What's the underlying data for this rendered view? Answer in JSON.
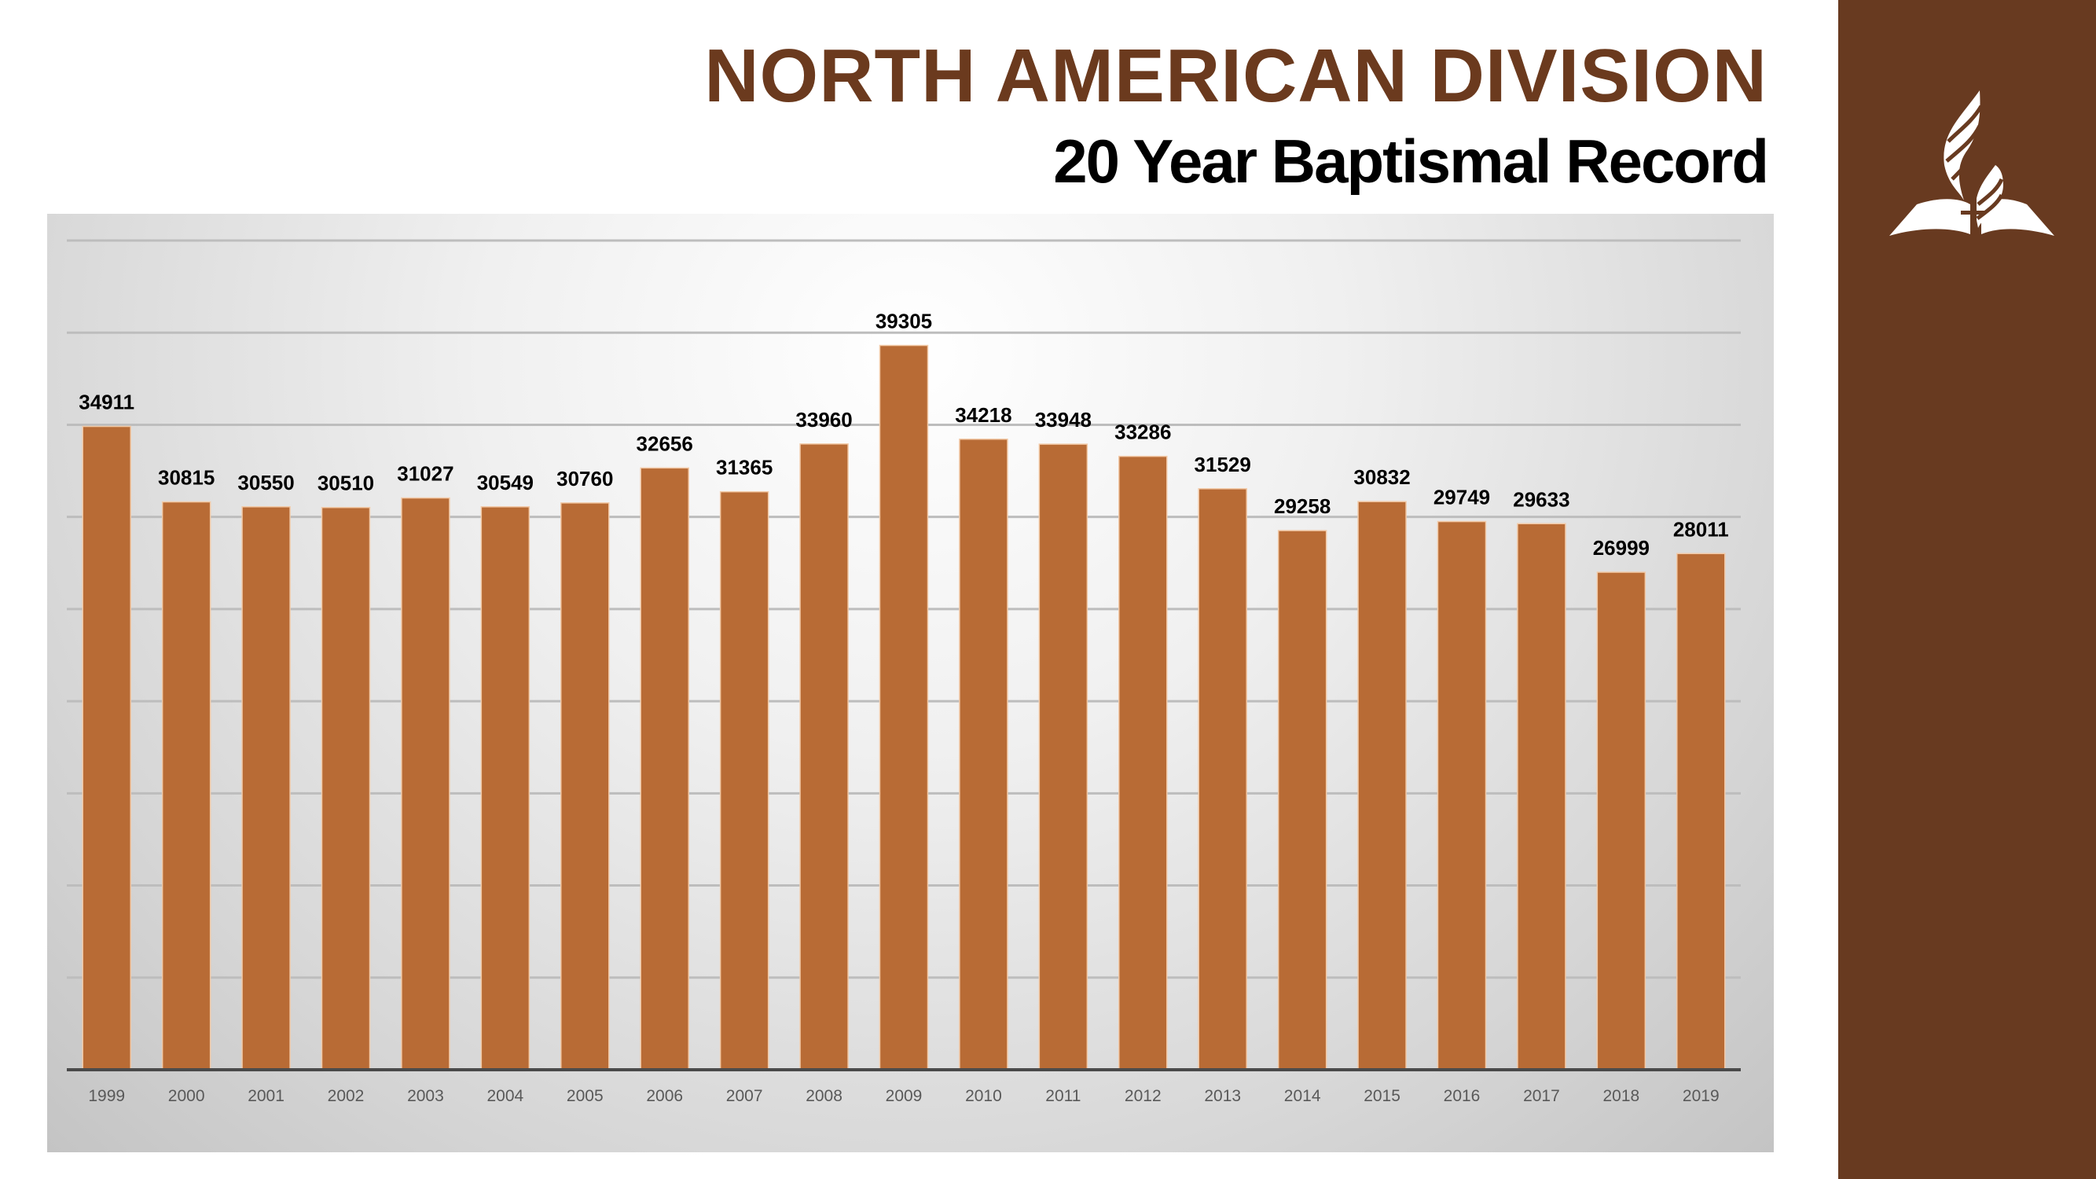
{
  "header": {
    "title": "NORTH AMERICAN DIVISION",
    "subtitle": "20 Year Baptismal Record"
  },
  "sidebar": {
    "color": "#683A20",
    "logo": "seventh-day-adventist-logo"
  },
  "chart_data": {
    "type": "bar",
    "title": "",
    "xlabel": "",
    "ylabel": "",
    "categories": [
      "1999",
      "2000",
      "2001",
      "2002",
      "2003",
      "2004",
      "2005",
      "2006",
      "2007",
      "2008",
      "2009",
      "2010",
      "2011",
      "2012",
      "2013",
      "2014",
      "2015",
      "2016",
      "2017",
      "2018",
      "2019"
    ],
    "values": [
      34911,
      30815,
      30550,
      30510,
      31027,
      30549,
      30760,
      32656,
      31365,
      33960,
      39305,
      34218,
      33948,
      33286,
      31529,
      29258,
      30832,
      29749,
      29633,
      26999,
      28011
    ],
    "data_labels": [
      "34911",
      "30815",
      "30550",
      "30510",
      "31027",
      "30549",
      "30760",
      "32656",
      "31365",
      "33960",
      "39305",
      "34218",
      "33948",
      "33286",
      "31529",
      "29258",
      "30832",
      "29749",
      "29633",
      "26999",
      "28011"
    ],
    "ylim": [
      0,
      45000
    ],
    "ytick_step": 5000,
    "y_tick_labels_shown": false,
    "grid": true,
    "legend": "none",
    "bar_color": "#B86B35",
    "title_color": "#6B3A1E"
  }
}
